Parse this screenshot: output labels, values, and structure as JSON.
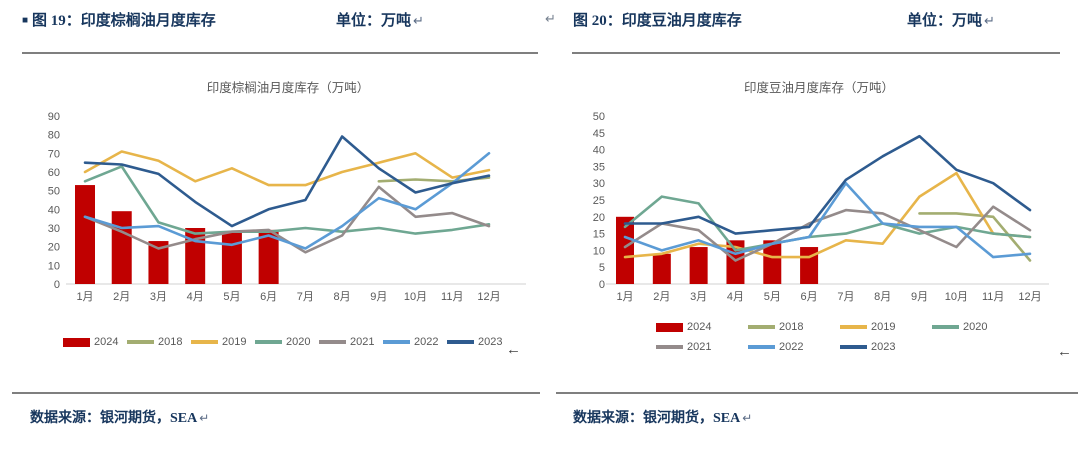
{
  "blocks": [
    {
      "bullet": "■",
      "heading": "图 19：印度棕榈油月度库存",
      "unit": "单位：万吨",
      "return_mark": "↵",
      "arrow_mark": "←",
      "source": "数据来源：银河期货，SEA"
    },
    {
      "lead_return_mark": "↵",
      "heading": "图 20：印度豆油月度库存",
      "unit": "单位：万吨",
      "return_mark": "↵",
      "arrow_mark": "←",
      "source": "数据来源：银河期货，SEA"
    }
  ],
  "colors": {
    "heading_navy": "#17365D",
    "chart_text_gray": "#595959",
    "rule_gray": "#7f7f7f",
    "axis_line_gray": "#D9D9D9",
    "bar_red": "#C00000"
  },
  "chart_data": [
    {
      "type": "bar",
      "combo": "bar+line",
      "title": "印度棕榈油月度库存（万吨）",
      "categories": [
        "1月",
        "2月",
        "3月",
        "4月",
        "5月",
        "6月",
        "7月",
        "8月",
        "9月",
        "10月",
        "11月",
        "12月"
      ],
      "ylim": [
        0,
        90
      ],
      "ytick_step": 10,
      "grid": false,
      "legend_position": "bottom",
      "series": [
        {
          "name": "2024",
          "type": "bar",
          "color": "#C00000",
          "values": [
            53,
            39,
            23,
            30,
            28,
            29,
            null,
            null,
            null,
            null,
            null,
            null
          ]
        },
        {
          "name": "2018",
          "type": "line",
          "color": "#A3AD71",
          "values": [
            null,
            null,
            null,
            null,
            null,
            null,
            null,
            null,
            55,
            56,
            55,
            57
          ]
        },
        {
          "name": "2019",
          "type": "line",
          "color": "#E7B54A",
          "values": [
            60,
            71,
            66,
            55,
            62,
            53,
            53,
            60,
            65,
            70,
            57,
            61
          ]
        },
        {
          "name": "2020",
          "type": "line",
          "color": "#6FA792",
          "values": [
            55,
            63,
            33,
            27,
            28,
            28,
            30,
            28,
            30,
            27,
            29,
            32
          ]
        },
        {
          "name": "2021",
          "type": "line",
          "color": "#948B8B",
          "values": [
            36,
            28,
            19,
            24,
            28,
            29,
            17,
            26,
            52,
            36,
            38,
            31
          ]
        },
        {
          "name": "2022",
          "type": "line",
          "color": "#5B9BD5",
          "values": [
            36,
            30,
            31,
            23,
            21,
            26,
            19,
            31,
            46,
            40,
            54,
            70
          ]
        },
        {
          "name": "2023",
          "type": "line",
          "color": "#2E5B8F",
          "values": [
            65,
            64,
            59,
            44,
            31,
            40,
            45,
            79,
            62,
            49,
            54,
            58
          ]
        }
      ]
    },
    {
      "type": "bar",
      "combo": "bar+line",
      "title": "印度豆油月度库存（万吨）",
      "categories": [
        "1月",
        "2月",
        "3月",
        "4月",
        "5月",
        "6月",
        "7月",
        "8月",
        "9月",
        "10月",
        "11月",
        "12月"
      ],
      "ylim": [
        0,
        50
      ],
      "ytick_step": 5,
      "grid": false,
      "legend_position": "bottom",
      "series": [
        {
          "name": "2024",
          "type": "bar",
          "color": "#C00000",
          "values": [
            20,
            9,
            11,
            13,
            13,
            11,
            null,
            null,
            null,
            null,
            null,
            null
          ]
        },
        {
          "name": "2018",
          "type": "line",
          "color": "#A3AD71",
          "values": [
            null,
            null,
            null,
            null,
            null,
            null,
            null,
            null,
            21,
            21,
            20,
            7
          ]
        },
        {
          "name": "2019",
          "type": "line",
          "color": "#E7B54A",
          "values": [
            8,
            9,
            12,
            11,
            8,
            8,
            13,
            12,
            26,
            33,
            15,
            14
          ]
        },
        {
          "name": "2020",
          "type": "line",
          "color": "#6FA792",
          "values": [
            17,
            26,
            24,
            10,
            12,
            14,
            15,
            18,
            15,
            17,
            15,
            14
          ]
        },
        {
          "name": "2021",
          "type": "line",
          "color": "#948B8B",
          "values": [
            11,
            18,
            16,
            7,
            12,
            18,
            22,
            21,
            16,
            11,
            23,
            16
          ]
        },
        {
          "name": "2022",
          "type": "line",
          "color": "#5B9BD5",
          "values": [
            14,
            10,
            13,
            9,
            12,
            14,
            30,
            18,
            17,
            17,
            8,
            9
          ]
        },
        {
          "name": "2023",
          "type": "line",
          "color": "#2E5B8F",
          "values": [
            18,
            18,
            20,
            15,
            16,
            17,
            31,
            38,
            44,
            34,
            30,
            22
          ]
        }
      ]
    }
  ]
}
